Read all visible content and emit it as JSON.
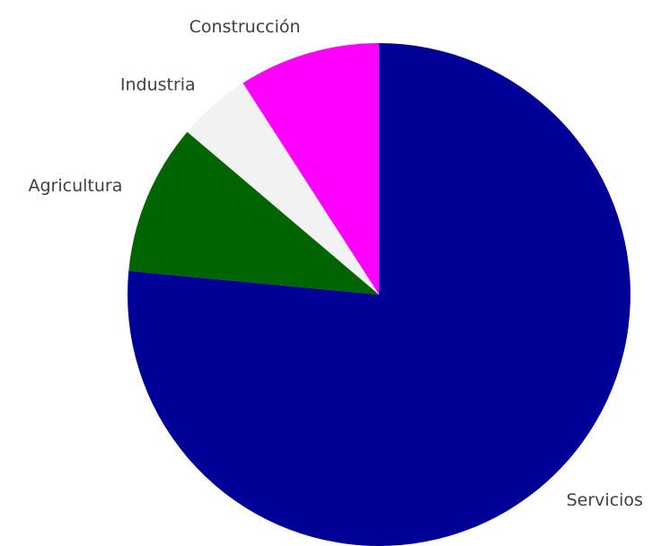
{
  "chart_data": {
    "type": "pie",
    "categories": [
      "Servicios",
      "Agricultura",
      "Industria",
      "Construcción"
    ],
    "values": [
      76.5,
      9.7,
      4.7,
      9.1
    ],
    "colors": [
      "#000096",
      "#006400",
      "#f2f2f2",
      "#ff00ff"
    ]
  }
}
